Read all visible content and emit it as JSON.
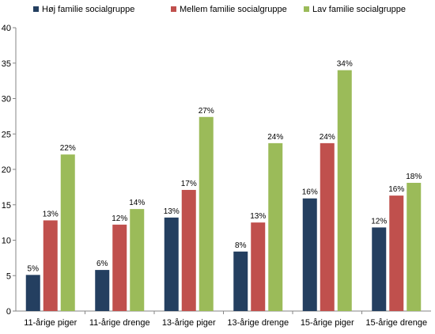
{
  "chart_data": {
    "type": "bar",
    "title": "",
    "xlabel": "",
    "ylabel": "",
    "ylim": [
      0,
      40
    ],
    "yticks": [
      0,
      5,
      10,
      15,
      20,
      25,
      30,
      35,
      40
    ],
    "grid": false,
    "legend_position": "top",
    "categories": [
      "11-årige piger",
      "11-årige drenge",
      "13-årige piger",
      "13-årige drenge",
      "15-årige piger",
      "15-årige drenge"
    ],
    "series": [
      {
        "name": "Høj familie socialgruppe",
        "color": "#243f60",
        "values": [
          5.1,
          5.8,
          13.2,
          8.4,
          15.9,
          11.8
        ],
        "labels": [
          "5%",
          "6%",
          "13%",
          "8%",
          "16%",
          "12%"
        ]
      },
      {
        "name": "Mellem familie socialgruppe",
        "color": "#c0504d",
        "values": [
          12.8,
          12.2,
          17.1,
          12.5,
          23.7,
          16.3
        ],
        "labels": [
          "13%",
          "12%",
          "17%",
          "13%",
          "24%",
          "16%"
        ]
      },
      {
        "name": "Lav familie socialgruppe",
        "color": "#9bbb59",
        "values": [
          22.1,
          14.4,
          27.4,
          23.7,
          34.0,
          18.1
        ],
        "labels": [
          "22%",
          "14%",
          "27%",
          "24%",
          "34%",
          "18%"
        ]
      }
    ]
  }
}
